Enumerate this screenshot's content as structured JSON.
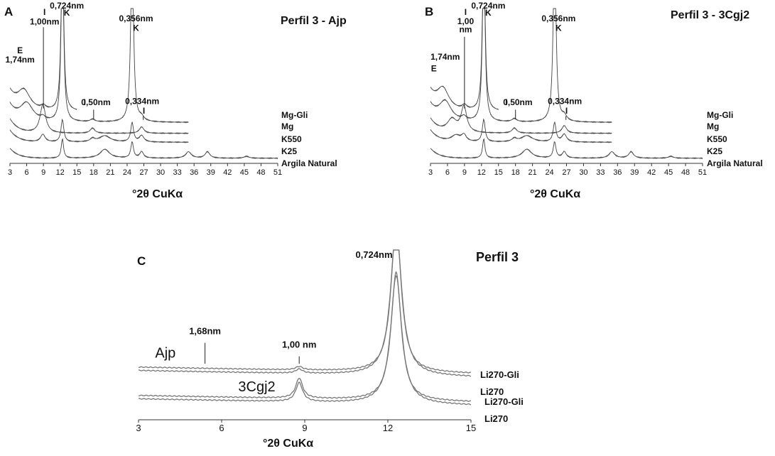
{
  "chart_data": [
    {
      "panel": "A",
      "type": "line",
      "title": "Perfil 3 - Ajp",
      "xlabel": "°2θ CuKα",
      "xlim": [
        3,
        51
      ],
      "xticks": [
        3,
        6,
        9,
        12,
        15,
        18,
        21,
        24,
        27,
        30,
        33,
        36,
        39,
        42,
        45,
        48,
        51
      ],
      "series": [
        {
          "name": "Mg-Gli",
          "baseline": 0.81,
          "x_end": 15,
          "peaks": [
            [
              5.5,
              0.3,
              1.4
            ],
            [
              9.0,
              0.06,
              0.5
            ],
            [
              12.4,
              3.0,
              0.25
            ]
          ]
        },
        {
          "name": "Mg",
          "baseline": 0.64,
          "x_end": 35,
          "peaks": [
            [
              6.0,
              0.28,
              1.4
            ],
            [
              8.9,
              0.05,
              0.5
            ],
            [
              12.4,
              3.0,
              0.25
            ],
            [
              17.8,
              0.04,
              0.5
            ],
            [
              24.9,
              3.0,
              0.28
            ],
            [
              26.6,
              0.06,
              0.5
            ]
          ]
        },
        {
          "name": "K550",
          "baseline": 0.47,
          "x_end": 35,
          "peaks": [
            [
              8.9,
              0.45,
              0.6
            ],
            [
              17.8,
              0.08,
              0.5
            ],
            [
              26.6,
              0.1,
              0.5
            ]
          ]
        },
        {
          "name": "K25",
          "baseline": 0.33,
          "x_end": 35,
          "peaks": [
            [
              8.9,
              0.12,
              0.5
            ],
            [
              12.4,
              0.35,
              0.3
            ],
            [
              17.8,
              0.05,
              0.5
            ],
            [
              20.0,
              0.1,
              1.2
            ],
            [
              24.9,
              0.3,
              0.3
            ],
            [
              26.6,
              0.1,
              0.5
            ]
          ]
        },
        {
          "name": "Argila Natural",
          "baseline": 0.08,
          "x_end": 51,
          "peaks": [
            [
              12.4,
              0.3,
              0.25
            ],
            [
              20.0,
              0.14,
              1.0
            ],
            [
              24.9,
              0.25,
              0.28
            ],
            [
              26.6,
              0.1,
              0.4
            ],
            [
              35.0,
              0.1,
              0.6
            ],
            [
              38.4,
              0.1,
              0.5
            ],
            [
              45.4,
              0.03,
              0.5
            ]
          ]
        }
      ],
      "annotations": [
        {
          "text": "E",
          "x": 4.8,
          "y": 1.72
        },
        {
          "text": "1,74nm",
          "x": 4.8,
          "y": 1.58
        },
        {
          "text": "I",
          "x": 9.2,
          "y": 2.32
        },
        {
          "text": "1,00nm",
          "x": 9.2,
          "y": 2.17
        },
        {
          "text": "0,724nm",
          "x": 13.2,
          "y": 2.46
        },
        {
          "text": "K",
          "x": 13.2,
          "y": 2.31
        },
        {
          "text": "0,356nm",
          "x": 25.6,
          "y": 2.22
        },
        {
          "text": "K",
          "x": 25.6,
          "y": 2.07
        },
        {
          "text": "I",
          "x": 16.4,
          "y": 0.91
        },
        {
          "text": "0,50nm",
          "x": 18.4,
          "y": 0.91
        },
        {
          "text": "0,334nm",
          "x": 26.7,
          "y": 0.93
        },
        {
          "text": "I",
          "x": 27.0,
          "y": 0.78
        }
      ],
      "markers": [
        {
          "x": 9.0,
          "y_from": 0.86,
          "y_to": 2.13
        },
        {
          "x": 18.0,
          "y_from": 0.69,
          "y_to": 0.84
        },
        {
          "x": 26.9,
          "y_from": 0.68,
          "y_to": 0.74
        }
      ]
    },
    {
      "panel": "B",
      "type": "line",
      "title": "Perfil 3 - 3Cgj2",
      "xlabel": "°2θ CuKα",
      "xlim": [
        3,
        51
      ],
      "xticks": [
        3,
        6,
        9,
        12,
        15,
        18,
        21,
        24,
        27,
        30,
        33,
        36,
        39,
        42,
        45,
        48,
        51
      ],
      "series": [
        {
          "name": "Mg-Gli",
          "baseline": 0.81,
          "x_end": 15,
          "peaks": [
            [
              5.2,
              0.32,
              1.3
            ],
            [
              9.0,
              0.07,
              0.5
            ],
            [
              12.4,
              3.0,
              0.25
            ]
          ]
        },
        {
          "name": "Mg",
          "baseline": 0.64,
          "x_end": 35,
          "peaks": [
            [
              5.6,
              0.3,
              1.3
            ],
            [
              8.9,
              0.06,
              0.5
            ],
            [
              12.4,
              3.0,
              0.25
            ],
            [
              17.8,
              0.05,
              0.5
            ],
            [
              24.9,
              3.0,
              0.28
            ],
            [
              26.6,
              0.08,
              0.5
            ]
          ]
        },
        {
          "name": "K550",
          "baseline": 0.47,
          "x_end": 35,
          "peaks": [
            [
              6.8,
              0.2,
              1.0
            ],
            [
              8.9,
              0.4,
              0.6
            ],
            [
              17.8,
              0.08,
              0.5
            ],
            [
              26.6,
              0.12,
              0.5
            ]
          ]
        },
        {
          "name": "K25",
          "baseline": 0.33,
          "x_end": 35,
          "peaks": [
            [
              7.5,
              0.1,
              1.0
            ],
            [
              8.9,
              0.1,
              0.5
            ],
            [
              12.4,
              0.35,
              0.3
            ],
            [
              17.8,
              0.05,
              0.5
            ],
            [
              20.0,
              0.1,
              1.2
            ],
            [
              24.9,
              0.3,
              0.3
            ],
            [
              26.6,
              0.12,
              0.5
            ]
          ]
        },
        {
          "name": "Argila Natural",
          "baseline": 0.08,
          "x_end": 51,
          "peaks": [
            [
              12.4,
              0.3,
              0.25
            ],
            [
              20.0,
              0.14,
              1.0
            ],
            [
              24.9,
              0.25,
              0.28
            ],
            [
              26.6,
              0.1,
              0.4
            ],
            [
              35.0,
              0.1,
              0.6
            ],
            [
              38.4,
              0.1,
              0.5
            ],
            [
              45.4,
              0.03,
              0.5
            ]
          ]
        }
      ],
      "annotations": [
        {
          "text": "1,74nm",
          "x": 5.6,
          "y": 1.62
        },
        {
          "text": "E",
          "x": 3.6,
          "y": 1.44
        },
        {
          "text": "I",
          "x": 9.2,
          "y": 2.32
        },
        {
          "text": "1,00",
          "x": 9.2,
          "y": 2.18
        },
        {
          "text": "nm",
          "x": 9.2,
          "y": 2.05
        },
        {
          "text": "0,724nm",
          "x": 13.2,
          "y": 2.46
        },
        {
          "text": "K",
          "x": 13.2,
          "y": 2.31
        },
        {
          "text": "0,356nm",
          "x": 25.6,
          "y": 2.22
        },
        {
          "text": "K",
          "x": 25.6,
          "y": 2.07
        },
        {
          "text": "I",
          "x": 16.4,
          "y": 0.91
        },
        {
          "text": "0,50nm",
          "x": 18.4,
          "y": 0.91
        },
        {
          "text": "0,334nm",
          "x": 26.7,
          "y": 0.93
        },
        {
          "text": "I",
          "x": 27.0,
          "y": 0.78
        }
      ],
      "markers": [
        {
          "x": 9.0,
          "y_from": 0.86,
          "y_to": 1.98
        },
        {
          "x": 18.0,
          "y_from": 0.69,
          "y_to": 0.84
        },
        {
          "x": 26.9,
          "y_from": 0.68,
          "y_to": 0.74
        }
      ]
    },
    {
      "panel": "C",
      "type": "line",
      "title": "Perfil 3",
      "xlabel": "°2θ CuKα",
      "xlim": [
        3,
        15
      ],
      "xticks": [
        3,
        6,
        9,
        12,
        15
      ],
      "series": [
        {
          "name": "Li270-Gli",
          "group": "Ajp",
          "baseline": 0.78,
          "slope": -0.008,
          "peaks": [
            [
              8.8,
              0.05,
              0.15
            ],
            [
              12.3,
              2.2,
              0.22
            ]
          ]
        },
        {
          "name": "Li270",
          "group": "Ajp",
          "baseline": 0.73,
          "slope": -0.008,
          "peaks": [
            [
              8.8,
              0.06,
              0.15
            ],
            [
              12.3,
              2.2,
              0.24
            ]
          ]
        },
        {
          "name": "Li270-Gli",
          "group": "3Cgj2",
          "baseline": 0.36,
          "slope": -0.008,
          "peaks": [
            [
              8.8,
              0.3,
              0.15
            ],
            [
              12.3,
              1.9,
              0.22
            ]
          ]
        },
        {
          "name": "Li270",
          "group": "3Cgj2",
          "baseline": 0.31,
          "slope": -0.008,
          "peaks": [
            [
              8.8,
              0.28,
              0.15
            ],
            [
              12.3,
              1.9,
              0.24
            ]
          ]
        }
      ],
      "annotations": [
        {
          "text": "0,724nm",
          "x": 11.5,
          "y": 2.4
        },
        {
          "text": "1,68nm",
          "x": 5.4,
          "y": 1.27
        },
        {
          "text": "1,00 nm",
          "x": 8.8,
          "y": 1.07
        },
        {
          "text": "Ajp",
          "x": 3.6,
          "y": 0.92
        },
        {
          "text": "3Cgj2",
          "x": 6.6,
          "y": 0.42
        }
      ],
      "markers": [
        {
          "x": 5.4,
          "y_from": 0.83,
          "y_to": 1.14
        },
        {
          "x": 8.8,
          "y_from": 0.83,
          "y_to": 0.94
        }
      ]
    }
  ]
}
